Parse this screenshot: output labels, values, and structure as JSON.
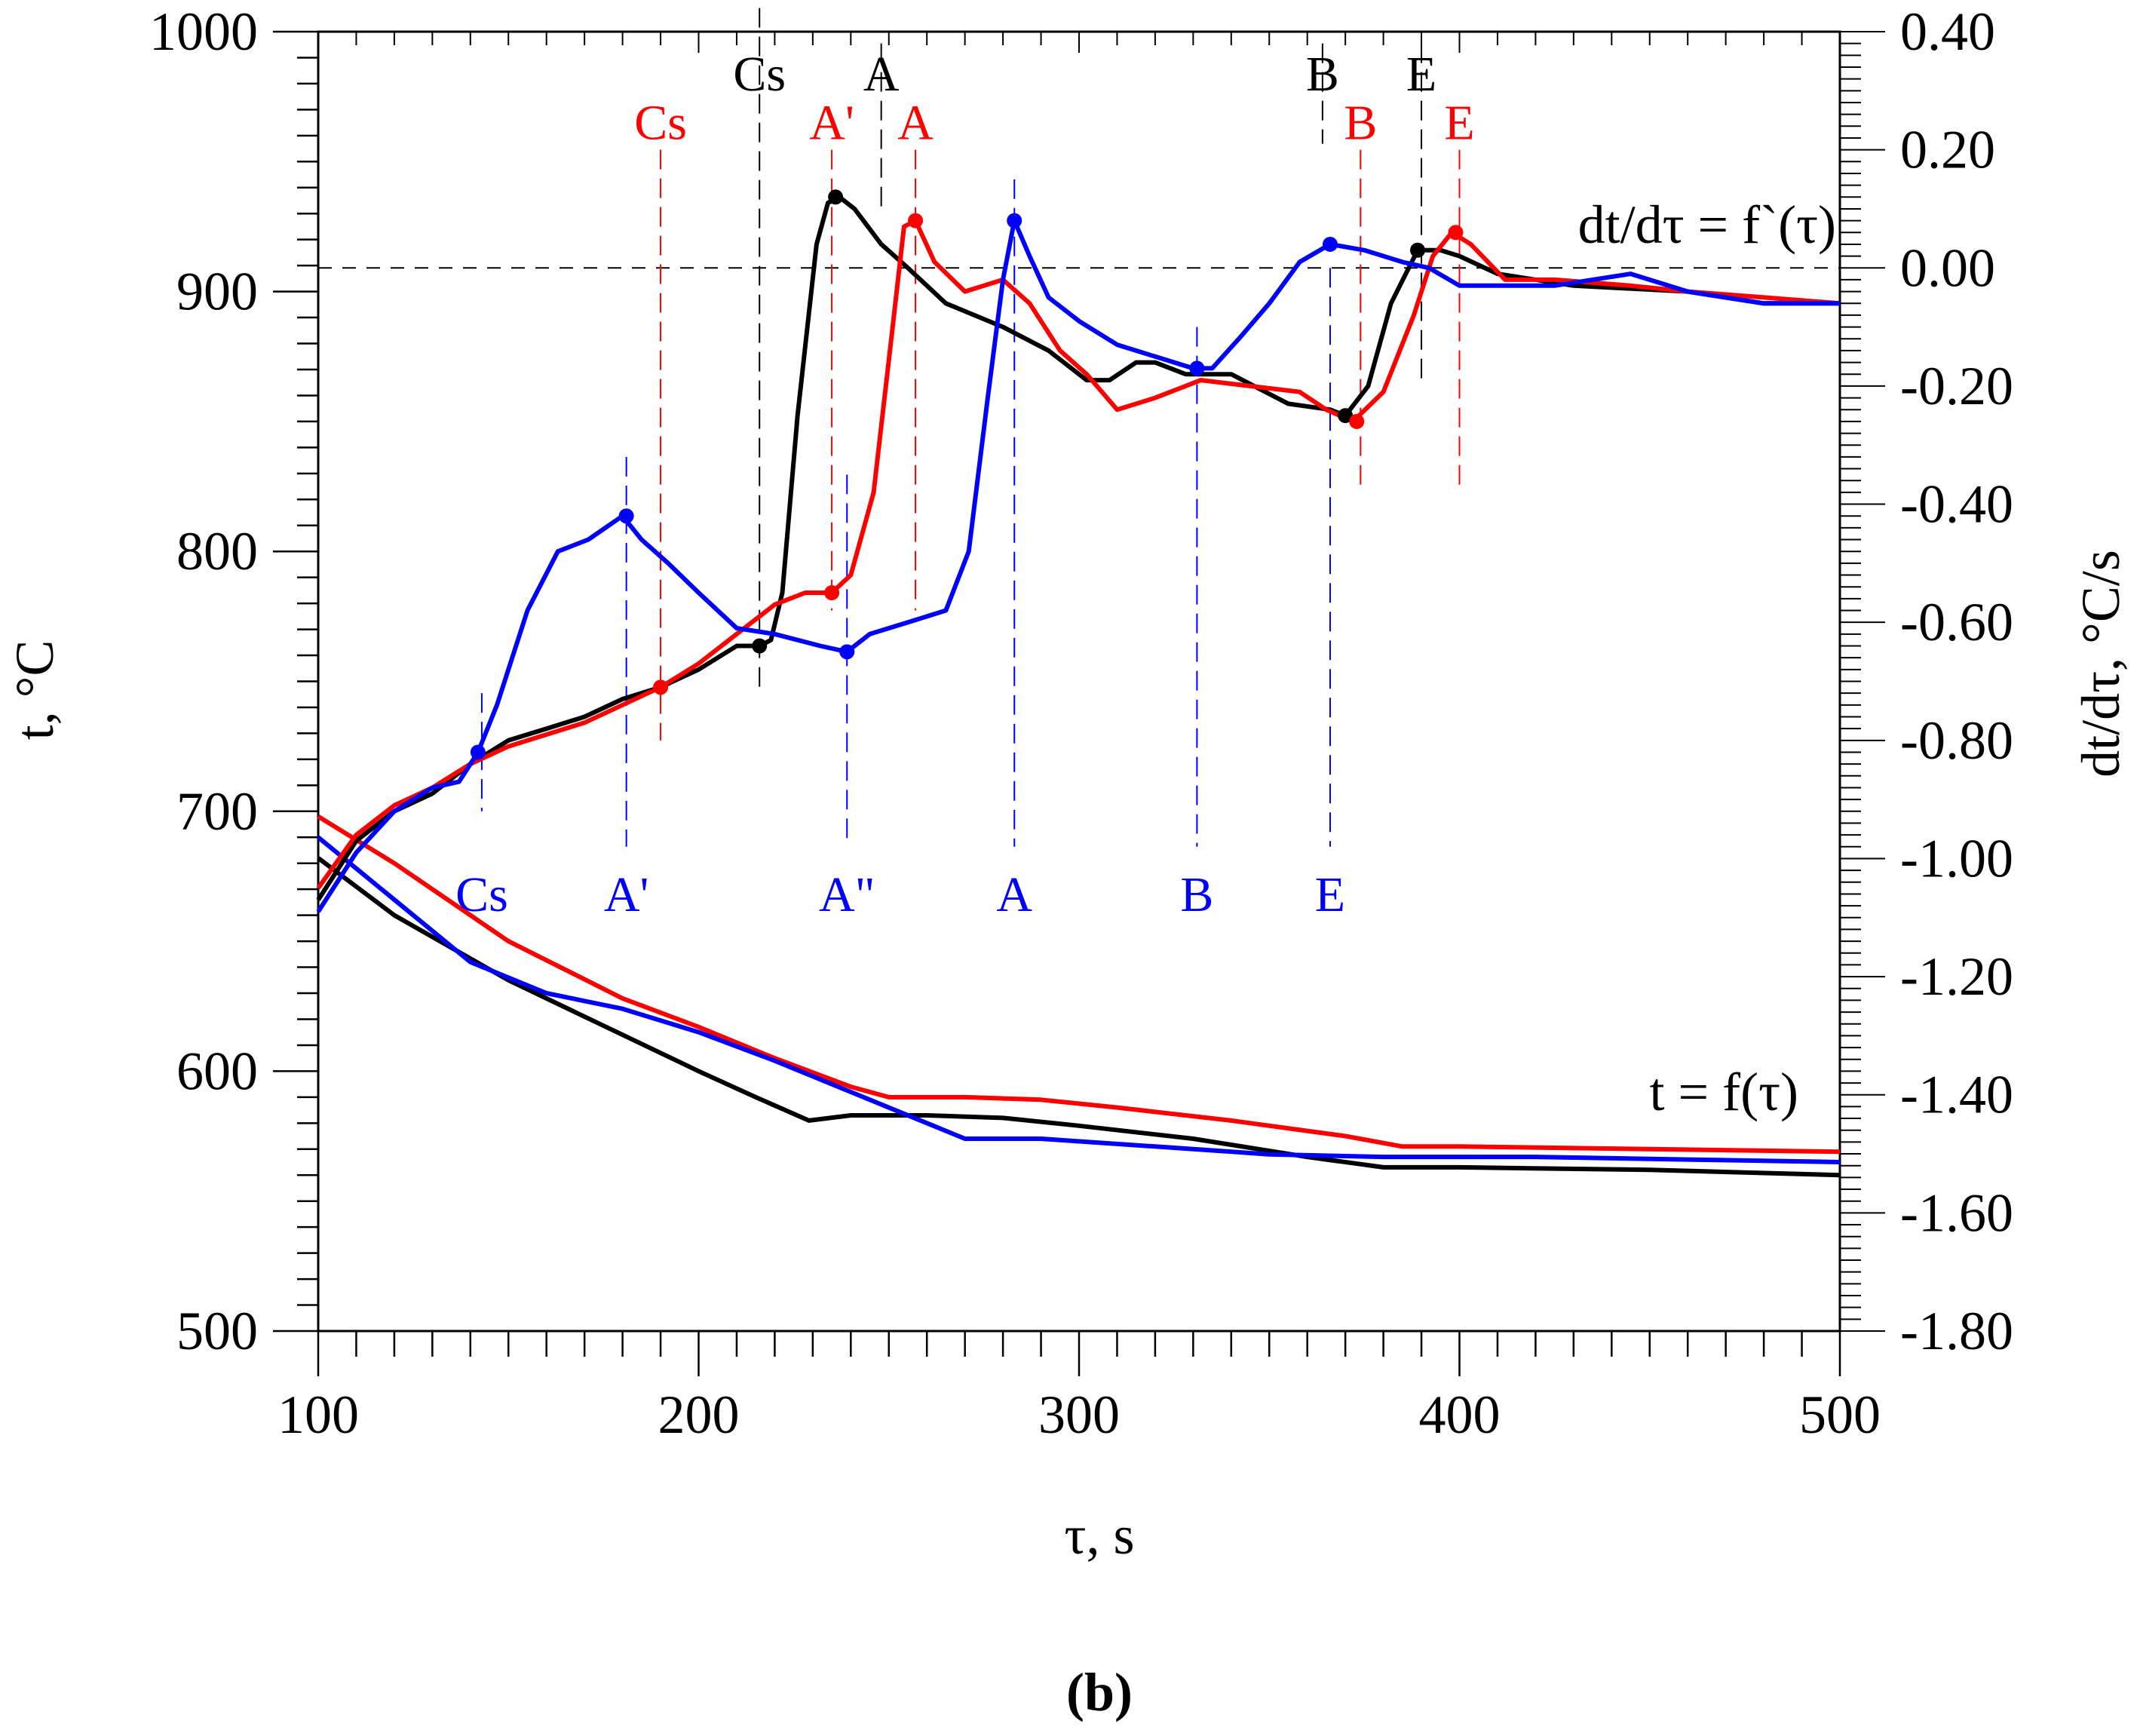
{
  "chart_data": {
    "type": "line",
    "caption": {
      "open": "(",
      "letter": "b",
      "close": ")"
    },
    "xlabel": "τ, s",
    "ylabel_left": "t, °C",
    "ylabel_right": "dt/dτ, °C/s",
    "xlim": [
      100,
      500
    ],
    "ylim_left": [
      500,
      1000
    ],
    "ylim_right": [
      -1.8,
      0.4
    ],
    "x_ticks": [
      "100",
      "200",
      "300",
      "400",
      "500"
    ],
    "y_left_ticks": [
      "500",
      "600",
      "700",
      "800",
      "900",
      "1000"
    ],
    "y_right_ticks": [
      "-1.80",
      "-1.60",
      "-1.40",
      "-1.20",
      "-1.00",
      "-0.80",
      "-0.60",
      "-0.40",
      "-0.20",
      "0.00",
      "0.20",
      "0.40"
    ],
    "zero_line_value": 0.0,
    "labels": {
      "derivative": "dt/dτ = f`(τ)",
      "temperature": "t = f(τ)"
    },
    "colors": {
      "black": "#000000",
      "red": "#ff0000",
      "blue": "#0000ff"
    },
    "temperature_series": [
      {
        "name": "black",
        "color": "#000000",
        "points": [
          [
            100,
            682
          ],
          [
            120,
            660
          ],
          [
            150,
            635
          ],
          [
            180,
            614
          ],
          [
            200,
            600
          ],
          [
            215,
            590
          ],
          [
            229,
            581
          ],
          [
            240,
            583
          ],
          [
            260,
            583
          ],
          [
            280,
            582
          ],
          [
            300,
            579
          ],
          [
            330,
            574
          ],
          [
            360,
            567
          ],
          [
            380,
            563
          ],
          [
            400,
            563
          ],
          [
            450,
            562
          ],
          [
            500,
            560
          ]
        ]
      },
      {
        "name": "red",
        "color": "#ff0000",
        "points": [
          [
            100,
            698
          ],
          [
            120,
            680
          ],
          [
            150,
            650
          ],
          [
            180,
            628
          ],
          [
            200,
            617
          ],
          [
            220,
            605
          ],
          [
            240,
            594
          ],
          [
            250,
            590
          ],
          [
            270,
            590
          ],
          [
            290,
            589
          ],
          [
            310,
            586
          ],
          [
            340,
            581
          ],
          [
            370,
            575
          ],
          [
            385,
            571
          ],
          [
            400,
            571
          ],
          [
            450,
            570
          ],
          [
            500,
            569
          ]
        ]
      },
      {
        "name": "blue",
        "color": "#0000ff",
        "points": [
          [
            100,
            690
          ],
          [
            120,
            666
          ],
          [
            140,
            642
          ],
          [
            160,
            630
          ],
          [
            180,
            624
          ],
          [
            200,
            615
          ],
          [
            220,
            604
          ],
          [
            240,
            592
          ],
          [
            260,
            580
          ],
          [
            270,
            574
          ],
          [
            290,
            574
          ],
          [
            320,
            571
          ],
          [
            350,
            568
          ],
          [
            380,
            567
          ],
          [
            420,
            567
          ],
          [
            460,
            566
          ],
          [
            500,
            565
          ]
        ]
      }
    ],
    "derivative_series": [
      {
        "name": "black",
        "color": "#000000",
        "points": [
          [
            100,
            -1.07
          ],
          [
            110,
            -0.97
          ],
          [
            120,
            -0.92
          ],
          [
            130,
            -0.89
          ],
          [
            140,
            -0.84
          ],
          [
            150,
            -0.8
          ],
          [
            160,
            -0.78
          ],
          [
            170,
            -0.76
          ],
          [
            180,
            -0.73
          ],
          [
            190,
            -0.71
          ],
          [
            200,
            -0.68
          ],
          [
            210,
            -0.64
          ],
          [
            216,
            -0.64
          ],
          [
            219,
            -0.63
          ],
          [
            222,
            -0.55
          ],
          [
            226,
            -0.25
          ],
          [
            231,
            0.04
          ],
          [
            234,
            0.11
          ],
          [
            237,
            0.12
          ],
          [
            241,
            0.1
          ],
          [
            248,
            0.04
          ],
          [
            255,
            0.0
          ],
          [
            265,
            -0.06
          ],
          [
            280,
            -0.1
          ],
          [
            292,
            -0.14
          ],
          [
            302,
            -0.19
          ],
          [
            308,
            -0.19
          ],
          [
            315,
            -0.16
          ],
          [
            320,
            -0.16
          ],
          [
            328,
            -0.18
          ],
          [
            340,
            -0.18
          ],
          [
            355,
            -0.23
          ],
          [
            366,
            -0.24
          ],
          [
            370,
            -0.25
          ],
          [
            376,
            -0.2
          ],
          [
            382,
            -0.06
          ],
          [
            389,
            0.03
          ],
          [
            395,
            0.03
          ],
          [
            400,
            0.02
          ],
          [
            410,
            -0.01
          ],
          [
            430,
            -0.03
          ],
          [
            460,
            -0.04
          ],
          [
            480,
            -0.06
          ],
          [
            500,
            -0.06
          ]
        ]
      },
      {
        "name": "red",
        "color": "#ff0000",
        "points": [
          [
            100,
            -1.05
          ],
          [
            110,
            -0.96
          ],
          [
            120,
            -0.91
          ],
          [
            130,
            -0.88
          ],
          [
            140,
            -0.84
          ],
          [
            150,
            -0.81
          ],
          [
            160,
            -0.79
          ],
          [
            170,
            -0.77
          ],
          [
            180,
            -0.74
          ],
          [
            190,
            -0.71
          ],
          [
            200,
            -0.67
          ],
          [
            210,
            -0.62
          ],
          [
            220,
            -0.57
          ],
          [
            228,
            -0.55
          ],
          [
            235,
            -0.55
          ],
          [
            240,
            -0.52
          ],
          [
            246,
            -0.38
          ],
          [
            251,
            -0.1
          ],
          [
            254,
            0.07
          ],
          [
            257,
            0.08
          ],
          [
            262,
            0.01
          ],
          [
            270,
            -0.04
          ],
          [
            280,
            -0.02
          ],
          [
            287,
            -0.06
          ],
          [
            295,
            -0.14
          ],
          [
            302,
            -0.18
          ],
          [
            310,
            -0.24
          ],
          [
            320,
            -0.22
          ],
          [
            332,
            -0.19
          ],
          [
            345,
            -0.2
          ],
          [
            358,
            -0.21
          ],
          [
            365,
            -0.24
          ],
          [
            372,
            -0.26
          ],
          [
            380,
            -0.21
          ],
          [
            388,
            -0.08
          ],
          [
            393,
            0.02
          ],
          [
            398,
            0.06
          ],
          [
            403,
            0.04
          ],
          [
            412,
            -0.02
          ],
          [
            425,
            -0.02
          ],
          [
            445,
            -0.03
          ],
          [
            460,
            -0.04
          ],
          [
            480,
            -0.05
          ],
          [
            500,
            -0.06
          ]
        ]
      },
      {
        "name": "blue",
        "color": "#0000ff",
        "points": [
          [
            100,
            -1.09
          ],
          [
            110,
            -0.99
          ],
          [
            120,
            -0.92
          ],
          [
            130,
            -0.88
          ],
          [
            137,
            -0.87
          ],
          [
            142,
            -0.82
          ],
          [
            147,
            -0.74
          ],
          [
            155,
            -0.58
          ],
          [
            163,
            -0.48
          ],
          [
            171,
            -0.46
          ],
          [
            180,
            -0.42
          ],
          [
            185,
            -0.46
          ],
          [
            192,
            -0.5
          ],
          [
            200,
            -0.55
          ],
          [
            210,
            -0.61
          ],
          [
            220,
            -0.62
          ],
          [
            232,
            -0.64
          ],
          [
            239,
            -0.65
          ],
          [
            245,
            -0.62
          ],
          [
            255,
            -0.6
          ],
          [
            265,
            -0.58
          ],
          [
            271,
            -0.48
          ],
          [
            276,
            -0.22
          ],
          [
            280,
            -0.02
          ],
          [
            283,
            0.08
          ],
          [
            287,
            0.02
          ],
          [
            292,
            -0.05
          ],
          [
            300,
            -0.09
          ],
          [
            310,
            -0.13
          ],
          [
            320,
            -0.15
          ],
          [
            330,
            -0.17
          ],
          [
            335,
            -0.17
          ],
          [
            342,
            -0.12
          ],
          [
            350,
            -0.06
          ],
          [
            358,
            0.01
          ],
          [
            366,
            0.04
          ],
          [
            375,
            0.03
          ],
          [
            385,
            0.01
          ],
          [
            392,
            0.0
          ],
          [
            400,
            -0.03
          ],
          [
            410,
            -0.03
          ],
          [
            425,
            -0.03
          ],
          [
            445,
            -0.01
          ],
          [
            460,
            -0.04
          ],
          [
            480,
            -0.06
          ],
          [
            500,
            -0.06
          ]
        ]
      }
    ],
    "markers": [
      {
        "series": "black",
        "x": 216,
        "y": -0.64
      },
      {
        "series": "black",
        "x": 236,
        "y": 0.12
      },
      {
        "series": "black",
        "x": 370,
        "y": -0.25
      },
      {
        "series": "black",
        "x": 389,
        "y": 0.03
      },
      {
        "series": "red",
        "x": 190,
        "y": -0.71
      },
      {
        "series": "red",
        "x": 235,
        "y": -0.55
      },
      {
        "series": "red",
        "x": 257,
        "y": 0.08
      },
      {
        "series": "red",
        "x": 373,
        "y": -0.26
      },
      {
        "series": "red",
        "x": 399,
        "y": 0.06
      },
      {
        "series": "blue",
        "x": 142,
        "y": -0.82
      },
      {
        "series": "blue",
        "x": 181,
        "y": -0.42
      },
      {
        "series": "blue",
        "x": 239,
        "y": -0.65
      },
      {
        "series": "blue",
        "x": 283,
        "y": 0.08
      },
      {
        "series": "blue",
        "x": 331,
        "y": -0.17
      },
      {
        "series": "blue",
        "x": 366,
        "y": 0.04
      }
    ],
    "annotations": [
      {
        "text": "Cs",
        "color": "#000000",
        "x": 216,
        "label_y": 1000,
        "line": [
          0.44,
          -0.72
        ]
      },
      {
        "text": "A",
        "color": "#000000",
        "x": 248,
        "label_y": 1000,
        "line": [
          0.38,
          0.1
        ]
      },
      {
        "text": "B",
        "color": "#000000",
        "x": 364,
        "label_y": 1000,
        "line": [
          0.38,
          0.21
        ]
      },
      {
        "text": "E",
        "color": "#000000",
        "x": 390,
        "label_y": 1000,
        "line": [
          0.38,
          -0.2
        ]
      },
      {
        "text": "Cs",
        "color": "#ff0000",
        "x": 190,
        "label_y": 976,
        "line": [
          0.2,
          -0.8
        ]
      },
      {
        "text": "A'",
        "color": "#ff0000",
        "x": 235,
        "label_y": 976,
        "line": [
          0.2,
          -0.58
        ]
      },
      {
        "text": "A",
        "color": "#ff0000",
        "x": 257,
        "label_y": 976,
        "line": [
          0.2,
          -0.58
        ]
      },
      {
        "text": "B",
        "color": "#ff0000",
        "x": 374,
        "label_y": 976,
        "line": [
          0.2,
          -0.38
        ]
      },
      {
        "text": "E",
        "color": "#ff0000",
        "x": 400,
        "label_y": 976,
        "line": [
          0.2,
          -0.38
        ]
      },
      {
        "text": "Cs",
        "color": "#0000ff",
        "x": 143,
        "label_y": 679,
        "line": [
          -0.72,
          -0.92
        ]
      },
      {
        "text": "A'",
        "color": "#0000ff",
        "x": 181,
        "label_y": 679,
        "line": [
          -0.32,
          -0.98
        ]
      },
      {
        "text": "A\"",
        "color": "#0000ff",
        "x": 239,
        "label_y": 679,
        "line": [
          -0.35,
          -0.98
        ]
      },
      {
        "text": "A",
        "color": "#0000ff",
        "x": 283,
        "label_y": 679,
        "line": [
          0.15,
          -0.98
        ]
      },
      {
        "text": "B",
        "color": "#0000ff",
        "x": 331,
        "label_y": 679,
        "line": [
          -0.1,
          -0.98
        ]
      },
      {
        "text": "E",
        "color": "#0000ff",
        "x": 366,
        "label_y": 679,
        "line": [
          0.0,
          -0.98
        ]
      }
    ]
  }
}
